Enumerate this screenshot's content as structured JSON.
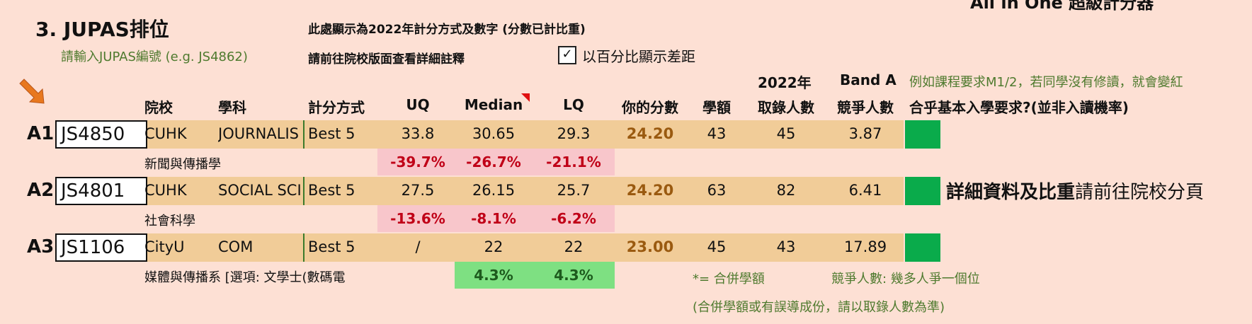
{
  "app_title": "All in One 超級計分器",
  "section_title": "3. JUPAS排位",
  "prompt_jupas_code": "請輸入JUPAS編號 (e.g. JS4862)",
  "note_line1": "此處顯示為2022年計分方式及數字 (分數已計比重)",
  "note_line2": "請前往院校版面查看詳細註釋",
  "percent_checkbox": {
    "checked": true,
    "mark": "✓",
    "label": "以百分比顯示差距"
  },
  "requirement_note": "例如課程要求M1/2，若同學沒有修讀，就會變紅",
  "headers": {
    "institution": "院校",
    "subject": "學科",
    "method": "計分方式",
    "uq": "UQ",
    "median": "Median",
    "lq": "LQ",
    "your_score": "你的分數",
    "quota": "學額",
    "admitted_top": "2022年",
    "admitted_bottom": "取錄人數",
    "competition_top": "Band A",
    "competition_bottom": "競爭人數",
    "requirement": "合乎基本入學要求?(並非入讀機率)"
  },
  "rows": [
    {
      "label": "A1",
      "code": "JS4850",
      "institution": "CUHK",
      "subject": "JOURNALIS",
      "method": "Best 5",
      "uq": "33.8",
      "median": "30.65",
      "lq": "29.3",
      "score": "24.20",
      "quota": "43",
      "admitted": "45",
      "competition": "3.87",
      "chinese_name": "新聞與傳播學",
      "diff_uq": "-39.7%",
      "diff_median": "-26.7%",
      "diff_lq": "-21.1%",
      "diff_positive": false
    },
    {
      "label": "A2",
      "code": "JS4801",
      "institution": "CUHK",
      "subject": "SOCIAL SCI",
      "method": "Best 5",
      "uq": "27.5",
      "median": "26.15",
      "lq": "25.7",
      "score": "24.20",
      "quota": "63",
      "admitted": "82",
      "competition": "6.41",
      "chinese_name": "社會科學",
      "diff_uq": "-13.6%",
      "diff_median": "-8.1%",
      "diff_lq": "-6.2%",
      "diff_positive": false
    },
    {
      "label": "A3",
      "code": "JS1106",
      "institution": "CityU",
      "subject": "COM",
      "method": "Best 5",
      "uq": "/",
      "median": "22",
      "lq": "22",
      "score": "23.00",
      "quota": "45",
      "admitted": "43",
      "competition": "17.89",
      "chinese_name": "媒體與傳播系 [選項: 文學士(數碼電",
      "diff_uq": "",
      "diff_median": "4.3%",
      "diff_lq": "4.3%",
      "diff_positive": true
    }
  ],
  "detail_bold": "詳細資料及比重",
  "detail_rest": "請前往院校分頁",
  "footnote_merged": "*= 合併學額",
  "footnote_competition": "競爭人數: 幾多人爭一個位",
  "footnote_caution": "(合併學額或有誤導成份，請以取錄人數為準)",
  "colors": {
    "background": "#fde0d4",
    "row_band": "#f1cc98",
    "requirement_ok": "#0aab4b",
    "negative_band": "#f8c6cb",
    "positive_band": "#7ee082",
    "negative_text": "#c00017",
    "score_text": "#9a5a10",
    "arrow": "#e8781e"
  },
  "icons": {
    "pointer": "arrow-down-right-icon",
    "check": "check-icon",
    "comment_flag": "comment-indicator-icon"
  }
}
